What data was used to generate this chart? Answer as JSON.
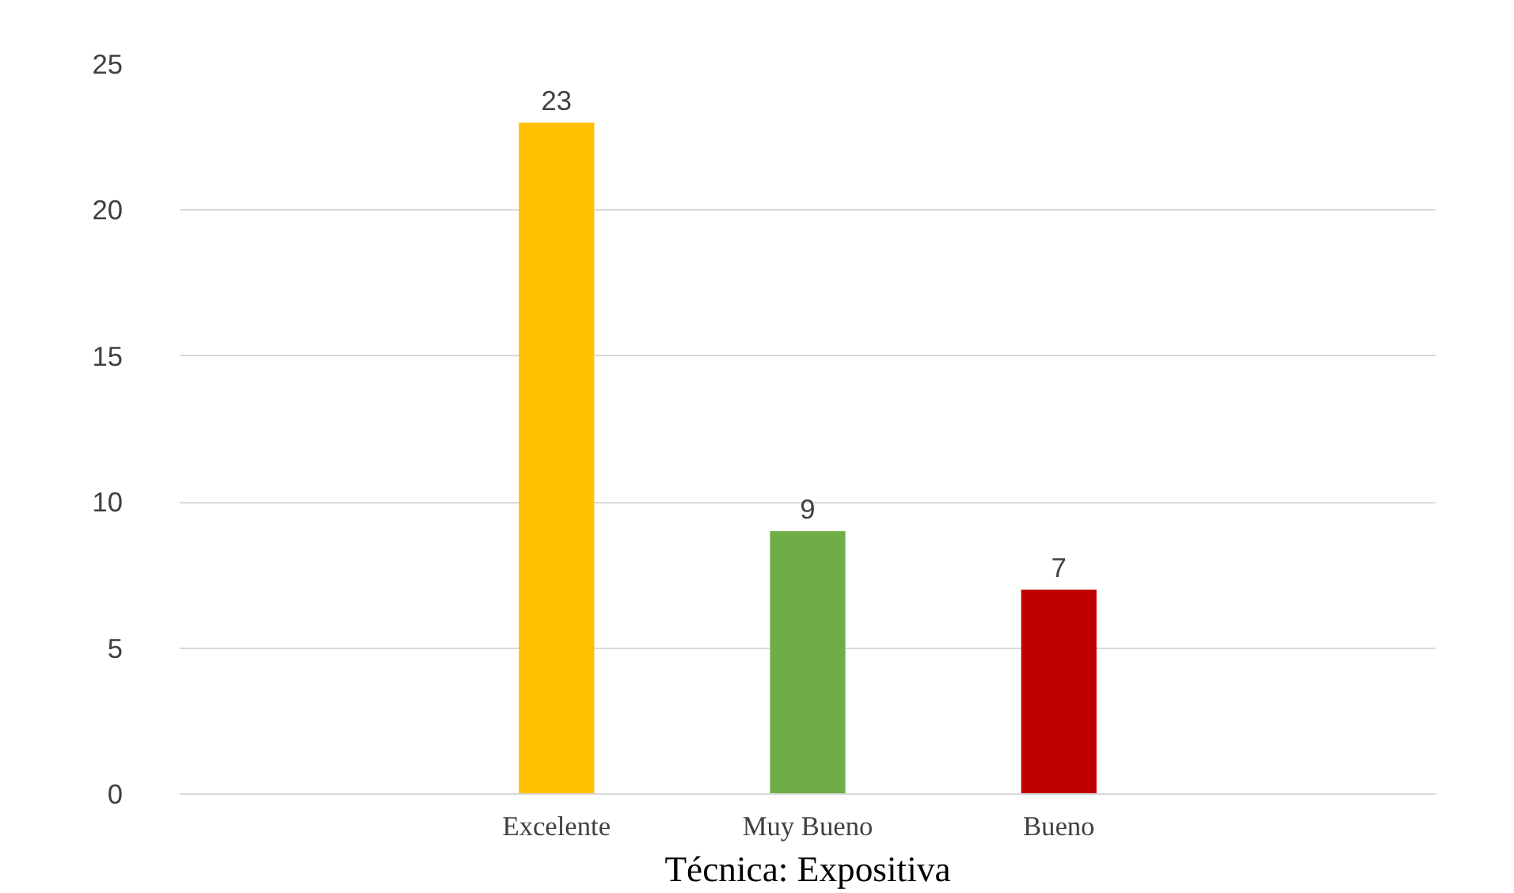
{
  "chart_data": {
    "type": "bar",
    "xlabel": "Técnica: Expositiva",
    "categories": [
      null,
      "Excelente",
      "Muy Bueno",
      "Bueno",
      null
    ],
    "values": [
      null,
      23,
      9,
      7,
      null
    ],
    "colors": [
      "#ffc000",
      "#ffc000",
      "#70ad47",
      "#c00000",
      "#c00000"
    ],
    "ylim": [
      0,
      25
    ],
    "yticks": [
      0,
      5,
      10,
      15,
      20,
      25
    ],
    "grid": "y",
    "data_labels": true
  }
}
